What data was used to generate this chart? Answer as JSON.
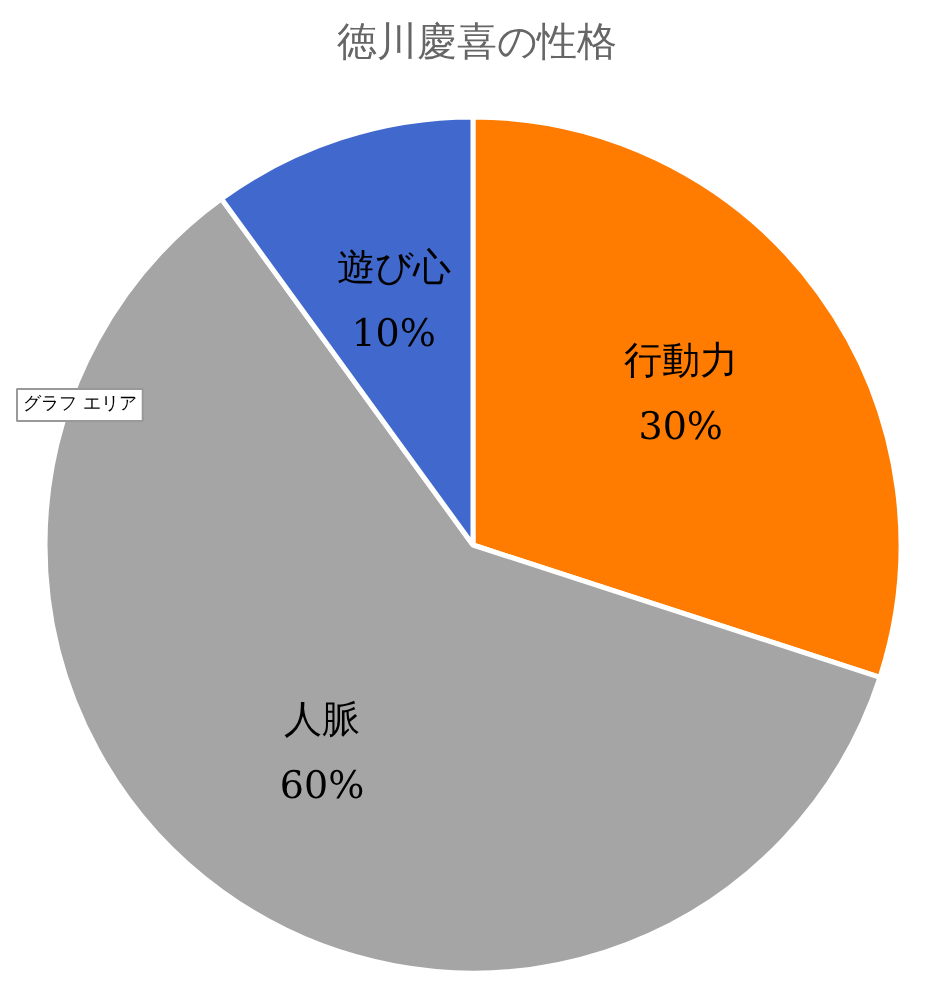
{
  "chart_data": {
    "type": "pie",
    "title": "徳川慶喜の性格",
    "categories": [
      "行動力",
      "人脈",
      "遊び心"
    ],
    "values": [
      30,
      60,
      10
    ],
    "colors": [
      "#ff7c00",
      "#a5a5a5",
      "#4169cd"
    ],
    "value_labels": [
      "30%",
      "60%",
      "10%"
    ],
    "annotations": [
      "グラフ エリア"
    ]
  }
}
